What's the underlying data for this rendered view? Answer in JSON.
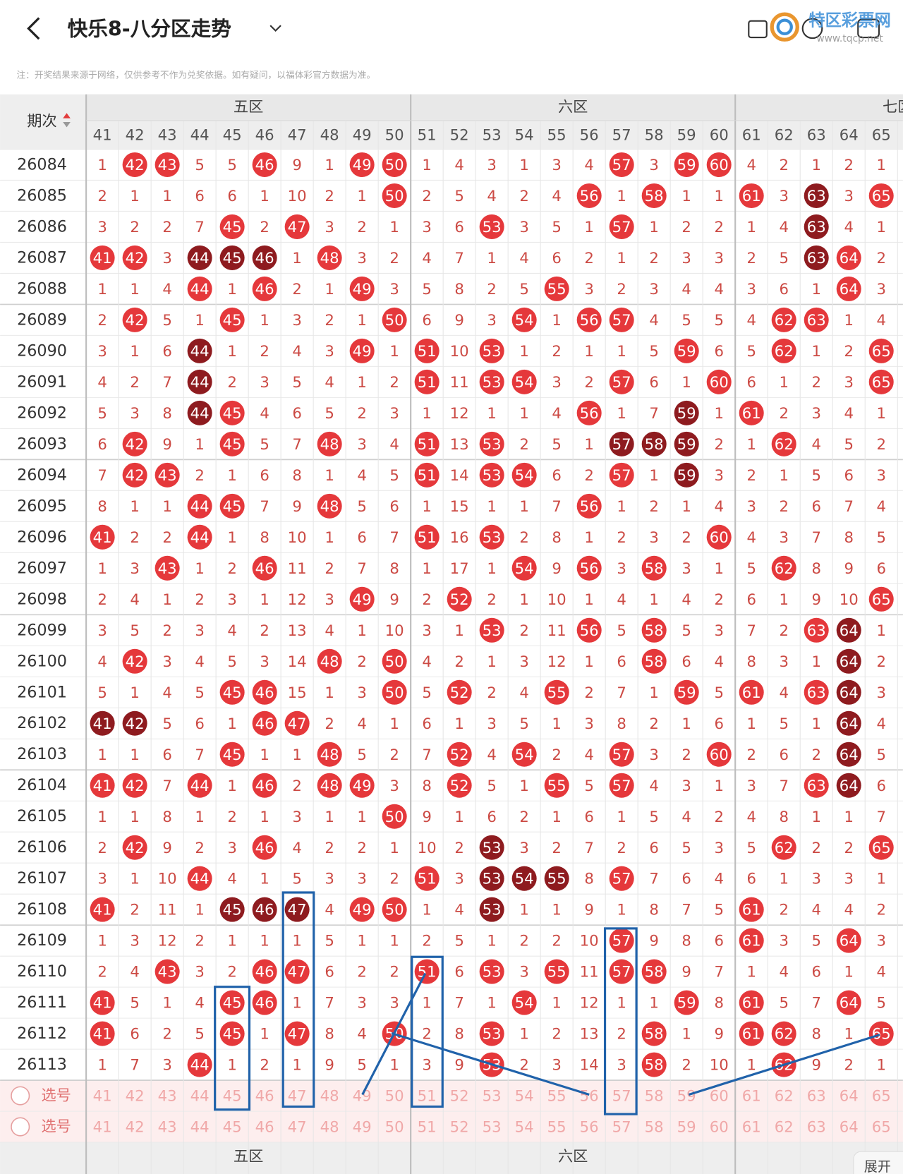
{
  "header": {
    "title": "快乐8-八分区走势",
    "note": "注：开奖结果来源于网络，仅供参考不作为兑奖依据。如有疑问，以福体彩官方数据为准。"
  },
  "watermark": {
    "name": "特区彩票网",
    "url": "www.tqcp.net"
  },
  "table": {
    "period_label": "期次",
    "zones": [
      "五区",
      "六区",
      "七区"
    ],
    "columns": [
      41,
      42,
      43,
      44,
      45,
      46,
      47,
      48,
      49,
      50,
      51,
      52,
      53,
      54,
      55,
      56,
      57,
      58,
      59,
      60,
      61,
      62,
      63,
      64,
      65
    ],
    "rows": [
      {
        "period": "26084",
        "cells": [
          1,
          42,
          43,
          5,
          5,
          46,
          9,
          1,
          49,
          50,
          1,
          4,
          3,
          1,
          3,
          4,
          57,
          3,
          59,
          60,
          4,
          2,
          1,
          2,
          1
        ],
        "dark": []
      },
      {
        "period": "26085",
        "cells": [
          2,
          1,
          1,
          6,
          6,
          1,
          10,
          2,
          1,
          50,
          2,
          5,
          4,
          2,
          4,
          56,
          1,
          58,
          1,
          1,
          61,
          3,
          63,
          3,
          65
        ],
        "dark": [
          63
        ]
      },
      {
        "period": "26086",
        "cells": [
          3,
          2,
          2,
          7,
          45,
          2,
          47,
          3,
          2,
          1,
          3,
          6,
          53,
          3,
          5,
          1,
          57,
          1,
          2,
          2,
          1,
          4,
          63,
          4,
          1
        ],
        "dark": [
          63
        ]
      },
      {
        "period": "26087",
        "cells": [
          41,
          42,
          3,
          44,
          45,
          46,
          1,
          48,
          3,
          2,
          4,
          7,
          1,
          4,
          6,
          2,
          1,
          2,
          3,
          3,
          2,
          5,
          63,
          64,
          2
        ],
        "dark": [
          44,
          45,
          46,
          63
        ]
      },
      {
        "period": "26088",
        "cells": [
          1,
          1,
          4,
          44,
          1,
          46,
          2,
          1,
          49,
          3,
          5,
          8,
          2,
          5,
          55,
          3,
          2,
          3,
          4,
          4,
          3,
          6,
          1,
          64,
          3
        ],
        "dark": []
      },
      {
        "period": "26089",
        "cells": [
          2,
          42,
          5,
          1,
          45,
          1,
          3,
          2,
          1,
          50,
          6,
          9,
          3,
          54,
          1,
          56,
          57,
          4,
          5,
          5,
          4,
          62,
          63,
          1,
          4
        ],
        "dark": []
      },
      {
        "period": "26090",
        "cells": [
          3,
          1,
          6,
          44,
          1,
          2,
          4,
          3,
          49,
          1,
          51,
          10,
          53,
          1,
          2,
          1,
          1,
          5,
          59,
          6,
          5,
          62,
          1,
          2,
          65
        ],
        "dark": [
          44
        ]
      },
      {
        "period": "26091",
        "cells": [
          4,
          2,
          7,
          44,
          2,
          3,
          5,
          4,
          1,
          2,
          51,
          11,
          53,
          54,
          3,
          2,
          57,
          6,
          1,
          60,
          6,
          1,
          2,
          3,
          65
        ],
        "dark": [
          44
        ]
      },
      {
        "period": "26092",
        "cells": [
          5,
          3,
          8,
          44,
          45,
          4,
          6,
          5,
          2,
          3,
          1,
          12,
          1,
          1,
          4,
          56,
          1,
          7,
          59,
          1,
          61,
          2,
          3,
          4,
          1
        ],
        "dark": [
          44,
          59
        ]
      },
      {
        "period": "26093",
        "cells": [
          6,
          42,
          9,
          1,
          45,
          5,
          7,
          48,
          3,
          4,
          51,
          13,
          53,
          2,
          5,
          1,
          57,
          58,
          59,
          2,
          1,
          62,
          4,
          5,
          2
        ],
        "dark": [
          57,
          58,
          59
        ]
      },
      {
        "period": "26094",
        "cells": [
          7,
          42,
          43,
          2,
          1,
          6,
          8,
          1,
          4,
          5,
          51,
          14,
          53,
          54,
          6,
          2,
          57,
          1,
          59,
          3,
          2,
          1,
          5,
          6,
          3
        ],
        "dark": [
          59
        ]
      },
      {
        "period": "26095",
        "cells": [
          8,
          1,
          1,
          44,
          45,
          7,
          9,
          48,
          5,
          6,
          1,
          15,
          1,
          1,
          7,
          56,
          1,
          2,
          1,
          4,
          3,
          2,
          6,
          7,
          4
        ],
        "dark": []
      },
      {
        "period": "26096",
        "cells": [
          41,
          2,
          2,
          44,
          1,
          8,
          10,
          1,
          6,
          7,
          51,
          16,
          53,
          2,
          8,
          1,
          2,
          3,
          2,
          60,
          4,
          3,
          7,
          8,
          5
        ],
        "dark": []
      },
      {
        "period": "26097",
        "cells": [
          1,
          3,
          43,
          1,
          2,
          46,
          11,
          2,
          7,
          8,
          1,
          17,
          1,
          54,
          9,
          56,
          3,
          58,
          3,
          1,
          5,
          62,
          8,
          9,
          6
        ],
        "dark": []
      },
      {
        "period": "26098",
        "cells": [
          2,
          4,
          1,
          2,
          3,
          1,
          12,
          3,
          49,
          9,
          2,
          52,
          2,
          1,
          10,
          1,
          4,
          1,
          4,
          2,
          6,
          1,
          9,
          10,
          65
        ],
        "dark": []
      },
      {
        "period": "26099",
        "cells": [
          3,
          5,
          2,
          3,
          4,
          2,
          13,
          4,
          1,
          10,
          3,
          1,
          53,
          2,
          11,
          56,
          5,
          58,
          5,
          3,
          7,
          2,
          63,
          64,
          1
        ],
        "dark": [
          64
        ]
      },
      {
        "period": "26100",
        "cells": [
          4,
          42,
          3,
          4,
          5,
          3,
          14,
          48,
          2,
          50,
          4,
          2,
          1,
          3,
          12,
          1,
          6,
          58,
          6,
          4,
          8,
          3,
          1,
          64,
          2
        ],
        "dark": [
          64
        ]
      },
      {
        "period": "26101",
        "cells": [
          5,
          1,
          4,
          5,
          45,
          46,
          15,
          1,
          3,
          50,
          5,
          52,
          2,
          4,
          55,
          2,
          7,
          1,
          59,
          5,
          61,
          4,
          63,
          64,
          3
        ],
        "dark": [
          64
        ]
      },
      {
        "period": "26102",
        "cells": [
          41,
          42,
          5,
          6,
          1,
          46,
          47,
          2,
          4,
          1,
          6,
          1,
          3,
          5,
          1,
          3,
          8,
          2,
          1,
          6,
          1,
          5,
          1,
          64,
          4
        ],
        "dark": [
          41,
          42,
          64
        ]
      },
      {
        "period": "26103",
        "cells": [
          1,
          1,
          6,
          7,
          45,
          1,
          1,
          48,
          5,
          2,
          7,
          52,
          4,
          54,
          2,
          4,
          57,
          3,
          2,
          60,
          2,
          6,
          2,
          64,
          5
        ],
        "dark": [
          64
        ]
      },
      {
        "period": "26104",
        "cells": [
          41,
          42,
          7,
          44,
          1,
          46,
          2,
          48,
          49,
          3,
          8,
          52,
          5,
          1,
          55,
          5,
          57,
          4,
          3,
          1,
          3,
          7,
          63,
          64,
          6
        ],
        "dark": [
          64
        ]
      },
      {
        "period": "26105",
        "cells": [
          1,
          1,
          8,
          1,
          2,
          1,
          3,
          1,
          1,
          50,
          9,
          1,
          6,
          2,
          1,
          6,
          1,
          5,
          4,
          2,
          4,
          8,
          1,
          1,
          7
        ],
        "dark": []
      },
      {
        "period": "26106",
        "cells": [
          2,
          42,
          9,
          2,
          3,
          46,
          4,
          2,
          2,
          1,
          10,
          2,
          53,
          3,
          2,
          7,
          2,
          6,
          5,
          3,
          5,
          62,
          2,
          2,
          65
        ],
        "dark": [
          53
        ]
      },
      {
        "period": "26107",
        "cells": [
          3,
          1,
          10,
          44,
          4,
          1,
          5,
          3,
          3,
          2,
          51,
          3,
          53,
          54,
          55,
          8,
          57,
          7,
          6,
          4,
          6,
          1,
          3,
          3,
          1
        ],
        "dark": [
          53,
          54,
          55
        ]
      },
      {
        "period": "26108",
        "cells": [
          41,
          2,
          11,
          1,
          45,
          46,
          47,
          4,
          49,
          50,
          1,
          4,
          53,
          1,
          1,
          9,
          1,
          8,
          7,
          5,
          61,
          2,
          4,
          4,
          2
        ],
        "dark": [
          45,
          46,
          47,
          53
        ]
      },
      {
        "period": "26109",
        "cells": [
          1,
          3,
          12,
          2,
          1,
          1,
          1,
          5,
          1,
          1,
          2,
          5,
          1,
          2,
          2,
          10,
          57,
          9,
          8,
          6,
          61,
          3,
          5,
          64,
          3
        ],
        "dark": []
      },
      {
        "period": "26110",
        "cells": [
          2,
          4,
          43,
          3,
          2,
          46,
          47,
          6,
          2,
          2,
          51,
          6,
          53,
          3,
          55,
          11,
          57,
          58,
          9,
          7,
          1,
          4,
          6,
          1,
          4
        ],
        "dark": []
      },
      {
        "period": "26111",
        "cells": [
          41,
          5,
          1,
          4,
          45,
          46,
          1,
          7,
          3,
          3,
          1,
          7,
          1,
          54,
          1,
          12,
          1,
          1,
          59,
          8,
          61,
          5,
          7,
          64,
          5
        ],
        "dark": []
      },
      {
        "period": "26112",
        "cells": [
          41,
          6,
          2,
          5,
          45,
          1,
          47,
          8,
          4,
          50,
          2,
          8,
          53,
          1,
          2,
          13,
          2,
          58,
          1,
          9,
          61,
          62,
          8,
          1,
          65
        ],
        "dark": []
      },
      {
        "period": "26113",
        "cells": [
          1,
          7,
          3,
          44,
          1,
          2,
          1,
          9,
          5,
          1,
          3,
          9,
          53,
          2,
          3,
          14,
          3,
          58,
          2,
          10,
          1,
          62,
          9,
          2,
          1
        ],
        "dark": []
      }
    ],
    "pick_label": "选号",
    "footer_zones": [
      "五区",
      "六区"
    ],
    "expand": "展开"
  }
}
